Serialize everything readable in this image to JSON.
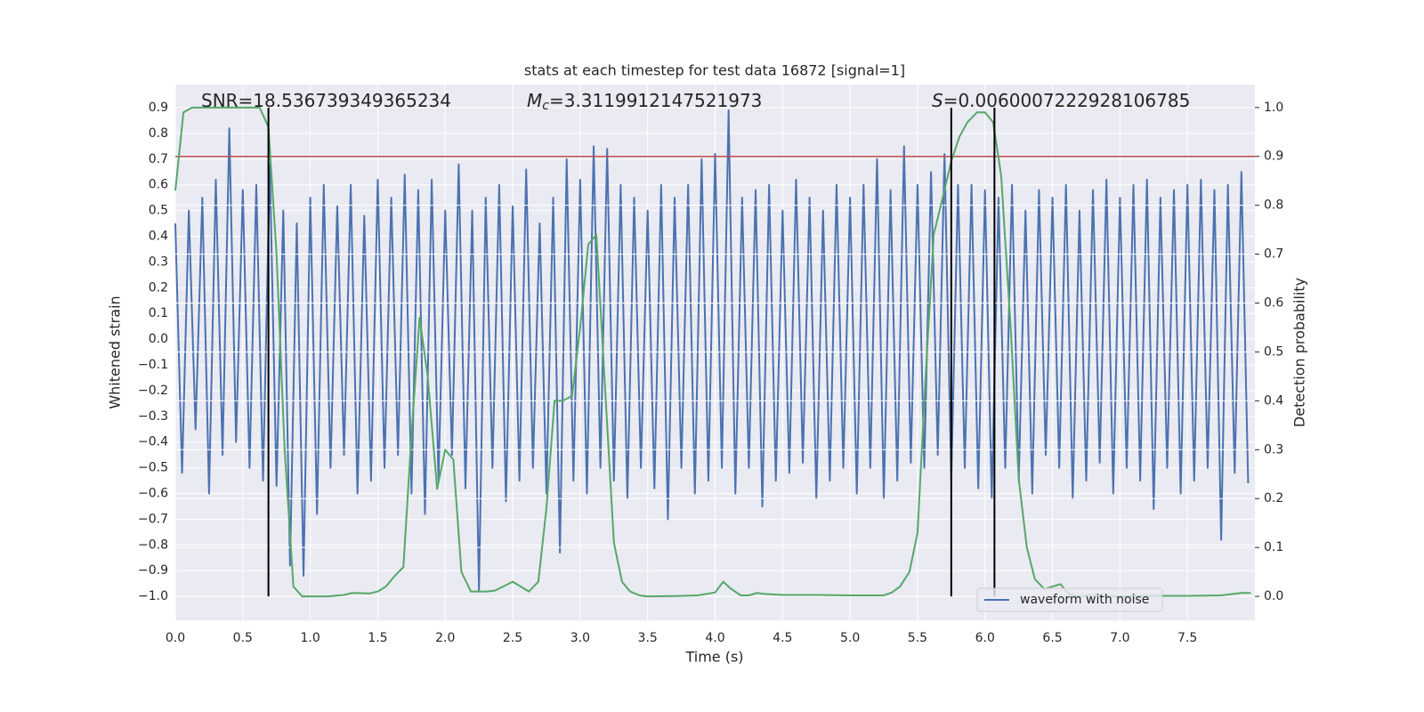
{
  "chart_data": {
    "type": "line",
    "title": "stats at each timestep for test data 16872 [signal=1]",
    "xlabel": "Time (s)",
    "ylabel": "Whitened strain",
    "y2label": "Detection probability",
    "annotations": [
      {
        "text": "SNR=18.536739349365234"
      },
      {
        "symbol": "M",
        "subscript": "c",
        "text": "=3.3119912147521973"
      },
      {
        "symbol": "S",
        "text": "=0.0060007222928106785"
      }
    ],
    "xlim": [
      0,
      8
    ],
    "xticks": [
      {
        "value": 0,
        "label": "0.0"
      },
      {
        "value": 0.5,
        "label": "0.5"
      },
      {
        "value": 1,
        "label": "1.0"
      },
      {
        "value": 1.5,
        "label": "1.5"
      },
      {
        "value": 2,
        "label": "2.0"
      },
      {
        "value": 2.5,
        "label": "2.5"
      },
      {
        "value": 3,
        "label": "3.0"
      },
      {
        "value": 3.5,
        "label": "3.5"
      },
      {
        "value": 4,
        "label": "4.0"
      },
      {
        "value": 4.5,
        "label": "4.5"
      },
      {
        "value": 5,
        "label": "5.0"
      },
      {
        "value": 5.5,
        "label": "5.5"
      },
      {
        "value": 6,
        "label": "6.0"
      },
      {
        "value": 6.5,
        "label": "6.5"
      },
      {
        "value": 7,
        "label": "7.0"
      },
      {
        "value": 7.5,
        "label": "7.5"
      }
    ],
    "ylim": [
      -1.093,
      0.99
    ],
    "yticks": [
      {
        "value": -1.0,
        "label": "−1.0"
      },
      {
        "value": -0.9,
        "label": "−0.9"
      },
      {
        "value": -0.8,
        "label": "−0.8"
      },
      {
        "value": -0.7,
        "label": "−0.7"
      },
      {
        "value": -0.6,
        "label": "−0.6"
      },
      {
        "value": -0.5,
        "label": "−0.5"
      },
      {
        "value": -0.4,
        "label": "−0.4"
      },
      {
        "value": -0.3,
        "label": "−0.3"
      },
      {
        "value": -0.2,
        "label": "−0.2"
      },
      {
        "value": -0.1,
        "label": "−0.1"
      },
      {
        "value": 0,
        "label": "0.0"
      },
      {
        "value": 0.1,
        "label": "0.1"
      },
      {
        "value": 0.2,
        "label": "0.2"
      },
      {
        "value": 0.3,
        "label": "0.3"
      },
      {
        "value": 0.4,
        "label": "0.4"
      },
      {
        "value": 0.5,
        "label": "0.5"
      },
      {
        "value": 0.6,
        "label": "0.6"
      },
      {
        "value": 0.7,
        "label": "0.7"
      },
      {
        "value": 0.8,
        "label": "0.8"
      },
      {
        "value": 0.9,
        "label": "0.9"
      }
    ],
    "y2lim": [
      -0.049,
      1.047
    ],
    "y2ticks": [
      {
        "value": 0,
        "label": "0.0"
      },
      {
        "value": 0.1,
        "label": "0.1"
      },
      {
        "value": 0.2,
        "label": "0.2"
      },
      {
        "value": 0.3,
        "label": "0.3"
      },
      {
        "value": 0.4,
        "label": "0.4"
      },
      {
        "value": 0.5,
        "label": "0.5"
      },
      {
        "value": 0.6,
        "label": "0.6"
      },
      {
        "value": 0.7,
        "label": "0.7"
      },
      {
        "value": 0.8,
        "label": "0.8"
      },
      {
        "value": 0.9,
        "label": "0.9"
      },
      {
        "value": 1,
        "label": "1.0"
      }
    ],
    "grid": true,
    "legend": "lower right",
    "series": [
      {
        "name": "waveform with noise",
        "color": "#4c72b0",
        "x": [
          0,
          0.05,
          0.1,
          0.15,
          0.2,
          0.25,
          0.3,
          0.35,
          0.4,
          0.45,
          0.5,
          0.55,
          0.6,
          0.65,
          0.7,
          0.75,
          0.8,
          0.85,
          0.9,
          0.95,
          1,
          1.05,
          1.1,
          1.15,
          1.2,
          1.25,
          1.3,
          1.35,
          1.4,
          1.45,
          1.5,
          1.55,
          1.6,
          1.65,
          1.7,
          1.75,
          1.8,
          1.85,
          1.9,
          1.95,
          2,
          2.05,
          2.1,
          2.15,
          2.2,
          2.25,
          2.3,
          2.35,
          2.4,
          2.45,
          2.5,
          2.55,
          2.6,
          2.65,
          2.7,
          2.75,
          2.8,
          2.85,
          2.9,
          2.95,
          3,
          3.05,
          3.1,
          3.15,
          3.2,
          3.25,
          3.3,
          3.35,
          3.4,
          3.45,
          3.5,
          3.55,
          3.6,
          3.65,
          3.7,
          3.75,
          3.8,
          3.85,
          3.9,
          3.95,
          4,
          4.05,
          4.1,
          4.15,
          4.2,
          4.25,
          4.3,
          4.35,
          4.4,
          4.45,
          4.5,
          4.55,
          4.6,
          4.65,
          4.7,
          4.75,
          4.8,
          4.85,
          4.9,
          4.95,
          5,
          5.05,
          5.1,
          5.15,
          5.2,
          5.25,
          5.3,
          5.35,
          5.4,
          5.45,
          5.5,
          5.55,
          5.6,
          5.65,
          5.7,
          5.75,
          5.8,
          5.85,
          5.9,
          5.95,
          6,
          6.05,
          6.1,
          6.15,
          6.2,
          6.25,
          6.3,
          6.35,
          6.4,
          6.45,
          6.5,
          6.55,
          6.6,
          6.65,
          6.7,
          6.75,
          6.8,
          6.85,
          6.9,
          6.95,
          7,
          7.05,
          7.1,
          7.15,
          7.2,
          7.25,
          7.3,
          7.35,
          7.4,
          7.45,
          7.5,
          7.55,
          7.6,
          7.65,
          7.7,
          7.75,
          7.8,
          7.85,
          7.9,
          7.95
        ],
        "values": [
          0.45,
          -0.52,
          0.5,
          -0.35,
          0.55,
          -0.6,
          0.62,
          -0.45,
          0.82,
          -0.4,
          0.58,
          -0.5,
          0.6,
          -0.55,
          0.68,
          -0.57,
          0.5,
          -0.88,
          0.45,
          -0.92,
          0.55,
          -0.68,
          0.6,
          -0.5,
          0.52,
          -0.45,
          0.6,
          -0.6,
          0.48,
          -0.55,
          0.62,
          -0.5,
          0.55,
          -0.45,
          0.64,
          -0.6,
          0.58,
          -0.68,
          0.62,
          -0.55,
          0.5,
          -0.45,
          0.68,
          -0.58,
          0.5,
          -0.98,
          0.55,
          -0.5,
          0.6,
          -0.63,
          0.52,
          -0.55,
          0.66,
          -0.5,
          0.45,
          -0.6,
          0.55,
          -0.83,
          0.7,
          -0.55,
          0.62,
          -0.6,
          0.75,
          -0.5,
          0.74,
          -0.55,
          0.6,
          -0.62,
          0.55,
          -0.5,
          0.5,
          -0.58,
          0.6,
          -0.7,
          0.55,
          -0.5,
          0.6,
          -0.6,
          0.7,
          -0.55,
          0.72,
          -0.5,
          0.89,
          -0.6,
          0.55,
          -0.5,
          0.58,
          -0.65,
          0.6,
          -0.55,
          0.5,
          -0.52,
          0.62,
          -0.48,
          0.55,
          -0.62,
          0.5,
          -0.55,
          0.6,
          -0.5,
          0.55,
          -0.6,
          0.6,
          -0.5,
          0.7,
          -0.62,
          0.58,
          -0.55,
          0.75,
          -0.48,
          0.6,
          -0.5,
          0.65,
          -0.45,
          0.72,
          -0.55,
          0.6,
          -0.5,
          0.6,
          -0.58,
          0.58,
          -0.62,
          0.55,
          -0.5,
          0.6,
          -0.55,
          0.5,
          -0.6,
          0.58,
          -0.45,
          0.55,
          -0.5,
          0.6,
          -0.62,
          0.5,
          -0.55,
          0.58,
          -0.48,
          0.62,
          -0.6,
          0.55,
          -0.5,
          0.6,
          -0.55,
          0.62,
          -0.66,
          0.55,
          -0.5,
          0.58,
          -0.6,
          0.6,
          -0.55,
          0.62,
          -0.5,
          0.58,
          -0.78,
          0.6,
          -0.52,
          0.65,
          -0.56
        ]
      },
      {
        "color": "#55a868",
        "axis": "y2",
        "x": [
          0,
          0.06,
          0.125,
          0.25,
          0.375,
          0.5,
          0.625,
          0.69,
          0.75,
          0.81,
          0.875,
          0.94,
          1.0,
          1.125,
          1.25,
          1.31,
          1.44,
          1.5,
          1.56,
          1.62,
          1.69,
          1.75,
          1.81,
          1.87,
          1.94,
          2.0,
          2.06,
          2.12,
          2.19,
          2.25,
          2.31,
          2.37,
          2.5,
          2.56,
          2.62,
          2.69,
          2.75,
          2.81,
          2.87,
          2.94,
          3.0,
          3.06,
          3.12,
          3.19,
          3.25,
          3.31,
          3.37,
          3.44,
          3.5,
          3.75,
          3.87,
          4.0,
          4.06,
          4.12,
          4.19,
          4.25,
          4.31,
          4.37,
          4.5,
          4.75,
          5.0,
          5.25,
          5.31,
          5.37,
          5.44,
          5.5,
          5.56,
          5.62,
          5.69,
          5.75,
          5.81,
          5.87,
          5.94,
          6.0,
          6.06,
          6.12,
          6.19,
          6.25,
          6.31,
          6.37,
          6.44,
          6.5,
          6.56,
          6.62,
          6.69,
          6.8,
          6.94,
          7.25,
          7.5,
          7.75,
          7.9,
          7.97
        ],
        "values": [
          0.83,
          0.99,
          1.0,
          1.0,
          1.0,
          1.0,
          1.0,
          0.96,
          0.7,
          0.3,
          0.02,
          0.0,
          0.0,
          0.0,
          0.003,
          0.007,
          0.006,
          0.01,
          0.02,
          0.04,
          0.06,
          0.33,
          0.57,
          0.45,
          0.22,
          0.3,
          0.28,
          0.05,
          0.01,
          0.01,
          0.01,
          0.012,
          0.03,
          0.02,
          0.01,
          0.03,
          0.18,
          0.4,
          0.4,
          0.41,
          0.55,
          0.72,
          0.74,
          0.4,
          0.11,
          0.03,
          0.01,
          0.002,
          0.0,
          0.001,
          0.002,
          0.008,
          0.03,
          0.015,
          0.002,
          0.002,
          0.007,
          0.005,
          0.003,
          0.003,
          0.002,
          0.002,
          0.008,
          0.02,
          0.05,
          0.13,
          0.45,
          0.74,
          0.82,
          0.89,
          0.94,
          0.97,
          0.99,
          0.99,
          0.97,
          0.86,
          0.55,
          0.24,
          0.1,
          0.035,
          0.015,
          0.02,
          0.025,
          0.005,
          0.0,
          0.003,
          0.0,
          0.001,
          0.001,
          0.002,
          0.007,
          0.007
        ]
      }
    ],
    "hline": {
      "y2": 0.9,
      "color": "#c44e52"
    },
    "vlines": {
      "x": [
        0.69,
        5.75,
        6.07
      ],
      "ymin": -1.0,
      "ymax": 0.9,
      "color": "#000000"
    }
  }
}
